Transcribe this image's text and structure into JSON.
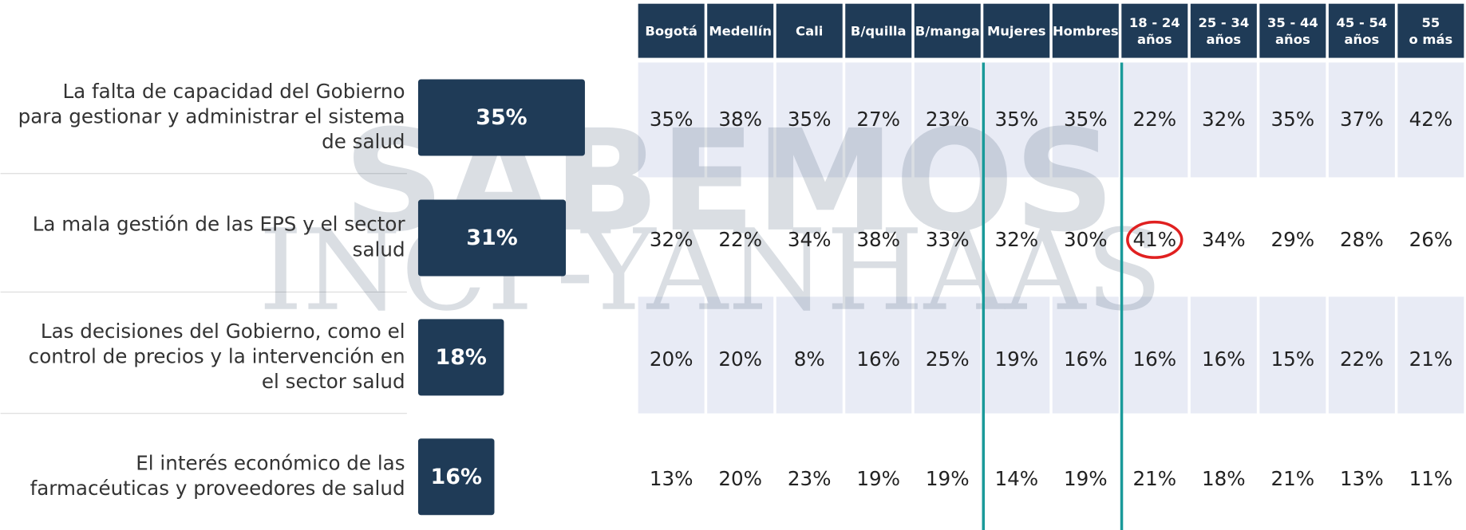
{
  "chart_data": {
    "type": "bar",
    "categories": [
      [
        "La falta de capacidad del Gobierno",
        "para gestionar y administrar el sistema",
        "de salud"
      ],
      [
        "La mala gestión de las EPS y el sector",
        "salud"
      ],
      [
        "Las decisiones del Gobierno, como el",
        "control de precios y la intervención en",
        "el sector salud"
      ],
      [
        "El interés económico de las",
        "farmacéuticas y proveedores de salud"
      ]
    ],
    "values": [
      35,
      31,
      18,
      16
    ],
    "value_labels": [
      "35%",
      "31%",
      "18%",
      "16%"
    ],
    "color": "#1f3b57"
  },
  "table": {
    "columns": [
      [
        "Bogotá"
      ],
      [
        "Medellín"
      ],
      [
        "Cali"
      ],
      [
        "B/quilla"
      ],
      [
        "B/manga"
      ],
      [
        "Mujeres"
      ],
      [
        "Hombres"
      ],
      [
        "18 - 24",
        "años"
      ],
      [
        "25 - 34",
        "años"
      ],
      [
        "35 - 44",
        "años"
      ],
      [
        "45 - 54",
        "años"
      ],
      [
        "55",
        "o más"
      ]
    ],
    "rows": [
      [
        "35%",
        "38%",
        "35%",
        "27%",
        "23%",
        "35%",
        "35%",
        "22%",
        "32%",
        "35%",
        "37%",
        "42%"
      ],
      [
        "32%",
        "22%",
        "34%",
        "38%",
        "33%",
        "32%",
        "30%",
        "41%",
        "34%",
        "29%",
        "28%",
        "26%"
      ],
      [
        "20%",
        "20%",
        "8%",
        "16%",
        "25%",
        "19%",
        "16%",
        "16%",
        "16%",
        "15%",
        "22%",
        "21%"
      ],
      [
        "13%",
        "20%",
        "23%",
        "19%",
        "19%",
        "14%",
        "19%",
        "21%",
        "18%",
        "21%",
        "13%",
        "11%"
      ]
    ]
  },
  "watermark": [
    "SABEMOS",
    "INCP-YANHAAS"
  ]
}
